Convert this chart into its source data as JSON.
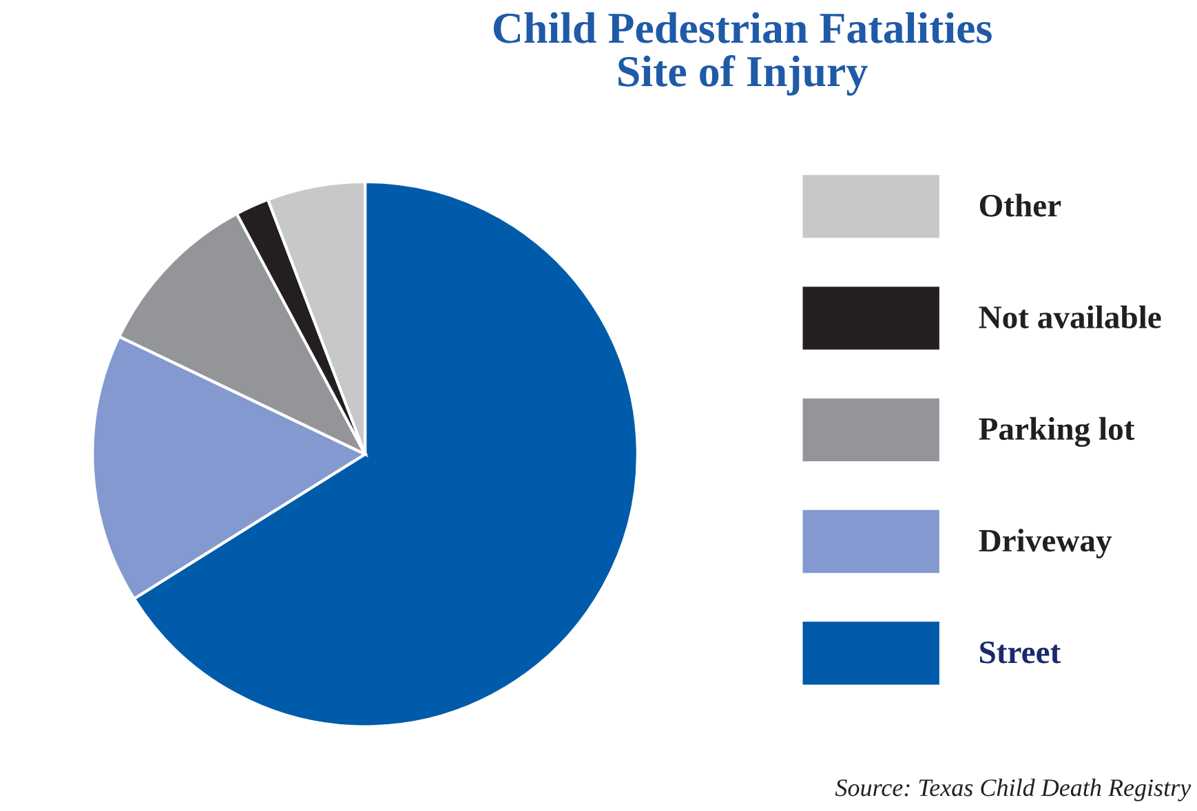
{
  "chart_data": {
    "type": "pie",
    "title": "Child Pedestrian Fatalities\nSite of Injury",
    "categories": [
      "Street",
      "Driveway",
      "Parking lot",
      "Not available",
      "Other"
    ],
    "values": [
      66.1,
      16.0,
      10.1,
      2.0,
      5.8
    ],
    "colors": [
      "#005baa",
      "#8399cf",
      "#939598",
      "#231f20",
      "#c7c8ca"
    ],
    "legend": "right",
    "annotations": [
      "Source: Texas Child Death Registry"
    ]
  }
}
